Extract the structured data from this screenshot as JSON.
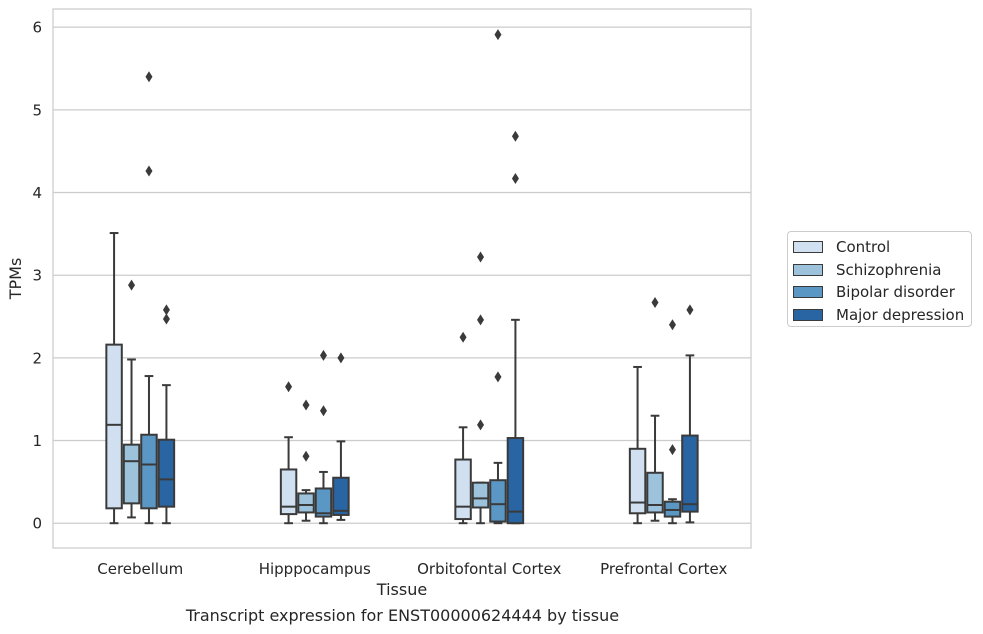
{
  "chart_data": {
    "type": "box",
    "title": "",
    "caption": "Transcript expression for ENST00000624444 by tissue",
    "xlabel": "Tissue",
    "ylabel": "TPMs",
    "ylim": [
      -0.3,
      6.22
    ],
    "yticks": [
      0,
      1,
      2,
      3,
      4,
      5,
      6
    ],
    "grid": true,
    "legend_position": "right",
    "categories": [
      "Cerebellum",
      "Hipppocampus",
      "Orbitofontal Cortex",
      "Prefrontal Cortex"
    ],
    "series": [
      {
        "name": "Control",
        "color": "#d1e0f0",
        "boxes": [
          {
            "whislo": 0.0,
            "q1": 0.18,
            "med": 1.19,
            "q3": 2.16,
            "whishi": 3.51,
            "fliers": []
          },
          {
            "whislo": 0.0,
            "q1": 0.11,
            "med": 0.2,
            "q3": 0.65,
            "whishi": 1.04,
            "fliers": [
              1.65
            ]
          },
          {
            "whislo": 0.0,
            "q1": 0.05,
            "med": 0.2,
            "q3": 0.77,
            "whishi": 1.16,
            "fliers": [
              2.25
            ]
          },
          {
            "whislo": 0.0,
            "q1": 0.12,
            "med": 0.25,
            "q3": 0.9,
            "whishi": 1.89,
            "fliers": []
          }
        ]
      },
      {
        "name": "Schizophrenia",
        "color": "#9cc2dc",
        "boxes": [
          {
            "whislo": 0.07,
            "q1": 0.24,
            "med": 0.75,
            "q3": 0.95,
            "whishi": 1.98,
            "fliers": [
              2.88
            ]
          },
          {
            "whislo": 0.03,
            "q1": 0.13,
            "med": 0.22,
            "q3": 0.36,
            "whishi": 0.4,
            "fliers": [
              0.81,
              1.43
            ]
          },
          {
            "whislo": 0.0,
            "q1": 0.19,
            "med": 0.3,
            "q3": 0.49,
            "whishi": 0.49,
            "fliers": [
              1.19,
              2.46,
              3.22
            ]
          },
          {
            "whislo": 0.03,
            "q1": 0.13,
            "med": 0.22,
            "q3": 0.61,
            "whishi": 1.3,
            "fliers": [
              2.67
            ]
          }
        ]
      },
      {
        "name": "Bipolar disorder",
        "color": "#5b97c5",
        "boxes": [
          {
            "whislo": 0.0,
            "q1": 0.18,
            "med": 0.71,
            "q3": 1.07,
            "whishi": 1.78,
            "fliers": [
              4.26,
              5.4
            ]
          },
          {
            "whislo": 0.0,
            "q1": 0.08,
            "med": 0.12,
            "q3": 0.42,
            "whishi": 0.62,
            "fliers": [
              1.36,
              2.03
            ]
          },
          {
            "whislo": 0.0,
            "q1": 0.02,
            "med": 0.23,
            "q3": 0.52,
            "whishi": 0.73,
            "fliers": [
              1.77,
              5.91
            ]
          },
          {
            "whislo": 0.0,
            "q1": 0.08,
            "med": 0.16,
            "q3": 0.26,
            "whishi": 0.29,
            "fliers": [
              0.89,
              2.4
            ]
          }
        ]
      },
      {
        "name": "Major depression",
        "color": "#2a65a3",
        "boxes": [
          {
            "whislo": 0.0,
            "q1": 0.2,
            "med": 0.53,
            "q3": 1.01,
            "whishi": 1.67,
            "fliers": [
              2.47,
              2.58
            ]
          },
          {
            "whislo": 0.04,
            "q1": 0.1,
            "med": 0.15,
            "q3": 0.55,
            "whishi": 0.99,
            "fliers": [
              2.0
            ]
          },
          {
            "whislo": 0.0,
            "q1": 0.0,
            "med": 0.14,
            "q3": 1.03,
            "whishi": 2.46,
            "fliers": [
              4.17,
              4.68
            ]
          },
          {
            "whislo": 0.01,
            "q1": 0.14,
            "med": 0.23,
            "q3": 1.06,
            "whishi": 2.03,
            "fliers": [
              2.58
            ]
          }
        ]
      }
    ]
  }
}
